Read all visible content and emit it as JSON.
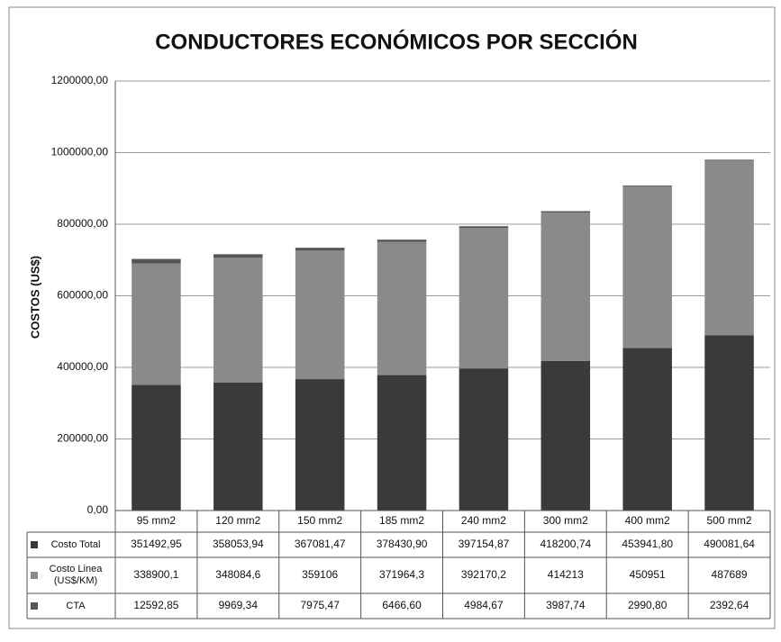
{
  "chart_data": {
    "type": "stacked_bar",
    "title": "CONDUCTORES ECONÓMICOS POR SECCIÓN",
    "y_label": "COSTOS (US$)",
    "categories": [
      "95 mm2",
      "120 mm2",
      "150 mm2",
      "185 mm2",
      "240 mm2",
      "300 mm2",
      "400 mm2",
      "500 mm2"
    ],
    "series": [
      {
        "name": "Costo Total",
        "color": "#3a3a3a",
        "values": [
          351492.95,
          358053.94,
          367081.47,
          378430.9,
          397154.87,
          418200.74,
          453941.8,
          490081.64
        ],
        "value_labels": [
          "351492,95",
          "358053,94",
          "367081,47",
          "378430,90",
          "397154,87",
          "418200,74",
          "453941,80",
          "490081,64"
        ]
      },
      {
        "name": "Costo Linea (US$/KM)",
        "color": "#8a8a8a",
        "values": [
          338900.1,
          348084.6,
          359106,
          371964.3,
          392170.2,
          414213,
          450951,
          487689
        ],
        "value_labels": [
          "338900,1",
          "348084,6",
          "359106",
          "371964,3",
          "392170,2",
          "414213",
          "450951",
          "487689"
        ]
      },
      {
        "name": "CTA",
        "color": "#555555",
        "values": [
          12592.85,
          9969.34,
          7975.47,
          6466.6,
          4984.67,
          3987.74,
          2990.8,
          2392.64
        ],
        "value_labels": [
          "12592,85",
          "9969,34",
          "7975,47",
          "6466,60",
          "4984,67",
          "3987,74",
          "2990,80",
          "2392,64"
        ]
      }
    ],
    "ylim": [
      0,
      1200000
    ],
    "yticks": [
      {
        "value": 0,
        "label": "0,00"
      },
      {
        "value": 200000,
        "label": "200000,00"
      },
      {
        "value": 400000,
        "label": "400000,00"
      },
      {
        "value": 600000,
        "label": "600000,00"
      },
      {
        "value": 800000,
        "label": "800000,00"
      },
      {
        "value": 1000000,
        "label": "1000000,00"
      },
      {
        "value": 1200000,
        "label": "1200000,00"
      }
    ],
    "grid": true
  }
}
